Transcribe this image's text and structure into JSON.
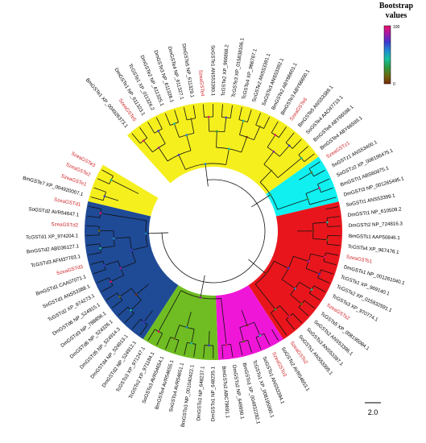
{
  "legend": {
    "title_line1": "Bootstrap",
    "title_line2": "values",
    "max_label": "100",
    "min_label": "0",
    "gradient": [
      "#e8106a",
      "#a01aa8",
      "#3a3ad0",
      "#1e8cd0",
      "#18c0a0",
      "#2a9a40",
      "#6a6a10",
      "#7a2a0a"
    ]
  },
  "scale_bar": {
    "label": "2.0"
  },
  "colors": {
    "label_default": "#000000",
    "label_highlight": "#d0262a",
    "branch": "#111111"
  },
  "clades": [
    {
      "name": "yellow",
      "color": "#f5ef1e"
    },
    {
      "name": "cyan",
      "color": "#10f0f0"
    },
    {
      "name": "red",
      "color": "#e8161c"
    },
    {
      "name": "magenta",
      "color": "#f016d8"
    },
    {
      "name": "green",
      "color": "#6fbd22"
    },
    {
      "name": "blue",
      "color": "#1f4a96"
    }
  ],
  "leaves": [
    {
      "label": "BmGSTe1 XP_004926373.1",
      "clade": "yellow",
      "highlight": false
    },
    {
      "label": "SzeaGSTe5",
      "clade": "yellow",
      "highlight": true
    },
    {
      "label": "DmGSTe1 NP_611323.1",
      "clade": "yellow",
      "highlight": false
    },
    {
      "label": "TcGSTe1 XP_011326.2",
      "clade": "yellow",
      "highlight": false
    },
    {
      "label": "DmGSTe2 NP_611325.1",
      "clade": "yellow",
      "highlight": false
    },
    {
      "label": "DmGSTe3 NP_611326.1",
      "clade": "yellow",
      "highlight": false
    },
    {
      "label": "DmGSTe4 NP_611327.1",
      "clade": "yellow",
      "highlight": false
    },
    {
      "label": "DmGSTe5 NP_611329.1",
      "clade": "yellow",
      "highlight": false
    },
    {
      "label": "SzeaGSTe4",
      "clade": "yellow",
      "highlight": true
    },
    {
      "label": "SoGSTe1 ANS53390.1",
      "clade": "yellow",
      "highlight": false
    },
    {
      "label": "TcGSTe2 XP_966868.2",
      "clade": "yellow",
      "highlight": false
    },
    {
      "label": "TcGSTe3 XP_015838106.1",
      "clade": "yellow",
      "highlight": false
    },
    {
      "label": "TcGSTe4 XP_966787.1",
      "clade": "yellow",
      "highlight": false
    },
    {
      "label": "SoGSTe2 ANS53391.1",
      "clade": "yellow",
      "highlight": false
    },
    {
      "label": "SoGSTe3 ANS53392.1",
      "clade": "yellow",
      "highlight": false
    },
    {
      "label": "BmGSTe2 ABY66601.1",
      "clade": "yellow",
      "highlight": false
    },
    {
      "label": "BmGSTe3 ABY66600.1",
      "clade": "yellow",
      "highlight": false
    },
    {
      "label": "SzeaGSTe6",
      "clade": "yellow",
      "highlight": true
    },
    {
      "label": "BmGSTe5 ANS53389.1",
      "clade": "yellow",
      "highlight": false
    },
    {
      "label": "SoGSTe4 AAO47719.1",
      "clade": "yellow",
      "highlight": false
    },
    {
      "label": "BmGSTe6 ABY66598.1",
      "clade": "yellow",
      "highlight": false
    },
    {
      "label": "BmGSTe4 ABY66599.1",
      "clade": "yellow",
      "highlight": false
    },
    {
      "label": "SzeaGSTz1",
      "clade": "cyan",
      "highlight": true
    },
    {
      "label": "SoGSTz1 ANS53400.1",
      "clade": "cyan",
      "highlight": false
    },
    {
      "label": "SoGSTz2 XP_008196475.1",
      "clade": "cyan",
      "highlight": false
    },
    {
      "label": "BmGSTt1 ABS60975.1",
      "clade": "cyan",
      "highlight": false
    },
    {
      "label": "DmGSTt3 NP_001265495.1",
      "clade": "cyan",
      "highlight": false
    },
    {
      "label": "SoGSTt1 ANS53399.1",
      "clade": "red",
      "highlight": false
    },
    {
      "label": "DmGSTt1 NP_610509.2",
      "clade": "red",
      "highlight": false
    },
    {
      "label": "DmGSTt2 NP_724816.3",
      "clade": "red",
      "highlight": false
    },
    {
      "label": "BmGSTs1 AAP50846.1",
      "clade": "red",
      "highlight": false
    },
    {
      "label": "TcGSTs4 XP_967476.1",
      "clade": "red",
      "highlight": false
    },
    {
      "label": "SzeaGSTs1",
      "clade": "red",
      "highlight": true
    },
    {
      "label": "DmGSTs1 NP_001261040.1",
      "clade": "red",
      "highlight": false
    },
    {
      "label": "TcGSTs1 XP_969140.1",
      "clade": "red",
      "highlight": false
    },
    {
      "label": "TcGSTs2 XP_015832591.1",
      "clade": "red",
      "highlight": false
    },
    {
      "label": "TcGSTs3 XP_970774.1",
      "clade": "red",
      "highlight": false
    },
    {
      "label": "SzeaGSTs2",
      "clade": "red",
      "highlight": true
    },
    {
      "label": "TcGSTs5 XP_008195084.1",
      "clade": "red",
      "highlight": false
    },
    {
      "label": "SoGSTs2 ANS53396.1",
      "clade": "red",
      "highlight": false
    },
    {
      "label": "SoGSTs3 ANS53397.1",
      "clade": "red",
      "highlight": false
    },
    {
      "label": "SoGSTs1 ANS53395.1",
      "clade": "red",
      "highlight": false
    },
    {
      "label": "SzeaGSTo2",
      "clade": "red",
      "highlight": true
    },
    {
      "label": "SoGSTo2 AVR54653.1",
      "clade": "magenta",
      "highlight": false
    },
    {
      "label": "SzeaGSTo3",
      "clade": "magenta",
      "highlight": true
    },
    {
      "label": "SoGSTo1 ANS53394.1",
      "clade": "magenta",
      "highlight": false
    },
    {
      "label": "TcGSTo1 XP_008195990.1",
      "clade": "magenta",
      "highlight": false
    },
    {
      "label": "BmGSTo1 XP_004932282.1",
      "clade": "magenta",
      "highlight": false
    },
    {
      "label": "DmGSTo2 NP_649990.1",
      "clade": "magenta",
      "highlight": false
    },
    {
      "label": "BmGSTo2 ABC79691.1",
      "clade": "magenta",
      "highlight": false
    },
    {
      "label": "DmGSTo1 NP_648235.1",
      "clade": "green",
      "highlight": false
    },
    {
      "label": "DmGSTo3 NP_648237.1",
      "clade": "green",
      "highlight": false
    },
    {
      "label": "BmGSTo3 NP_001040422.1",
      "clade": "green",
      "highlight": false
    },
    {
      "label": "SoGSTo4 AVR54651.1",
      "clade": "green",
      "highlight": false
    },
    {
      "label": "BmGSTo4 AVR54655.1",
      "clade": "green",
      "highlight": false
    },
    {
      "label": "SoGSTo3 AVR54654.1",
      "clade": "green",
      "highlight": false
    },
    {
      "label": "TcGSTo2 XP_971184.1",
      "clade": "green",
      "highlight": false
    },
    {
      "label": "TcGSTo3 XP_971247.1",
      "clade": "green",
      "highlight": false
    },
    {
      "label": "DmGSTd2 NP_524912.1",
      "clade": "blue",
      "highlight": false
    },
    {
      "label": "DmGSTd4 NP_524913.1",
      "clade": "blue",
      "highlight": false
    },
    {
      "label": "DmGSTd5 NP_524914.3",
      "clade": "blue",
      "highlight": false
    },
    {
      "label": "DmGSTd6 NP_524326.1",
      "clade": "blue",
      "highlight": false
    },
    {
      "label": "DmGSTd3 NP_788856.1",
      "clade": "blue",
      "highlight": false
    },
    {
      "label": "DmGSTd6 NP_524915.1",
      "clade": "blue",
      "highlight": false
    },
    {
      "label": "TcGSTd2 XP_974273.1",
      "clade": "blue",
      "highlight": false
    },
    {
      "label": "SoGSTd1 ANS53388.1",
      "clade": "blue",
      "highlight": false
    },
    {
      "label": "BmGSTd1 CAA07071.1",
      "clade": "blue",
      "highlight": false
    },
    {
      "label": "SzeaGSTd3",
      "clade": "blue",
      "highlight": true
    },
    {
      "label": "TcGSTd3 AFM37703.1",
      "clade": "blue",
      "highlight": false
    },
    {
      "label": "BmGSTd2 ABD36127.1",
      "clade": "blue",
      "highlight": false
    },
    {
      "label": "TcGSTd1 XP_974204.1",
      "clade": "blue",
      "highlight": false
    },
    {
      "label": "SzeaGSTd2",
      "clade": "blue",
      "highlight": true
    },
    {
      "label": "SoGSTd2 AVR54647.1",
      "clade": "blue",
      "highlight": false
    },
    {
      "label": "SzeaGSTd1",
      "clade": "blue",
      "highlight": true
    },
    {
      "label": "BmGSTe7 XP_004920007.1",
      "clade": "yellow",
      "highlight": false
    },
    {
      "label": "SzeaGSTe1",
      "clade": "yellow",
      "highlight": true
    },
    {
      "label": "SzeaGSTe2",
      "clade": "yellow",
      "highlight": true
    },
    {
      "label": "SzeaGSTe3",
      "clade": "yellow",
      "highlight": true
    }
  ]
}
